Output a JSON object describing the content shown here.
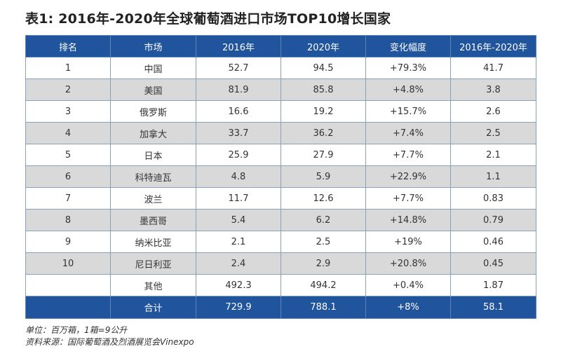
{
  "title": "表1: 2016年-2020年全球葡萄酒进口市场TOP10增长国家",
  "table": {
    "headers": [
      "排名",
      "市场",
      "2016年",
      "2020年",
      "变化幅度",
      "2016年-2020年"
    ],
    "rows": [
      [
        "1",
        "中国",
        "52.7",
        "94.5",
        "+79.3%",
        "41.7"
      ],
      [
        "2",
        "美国",
        "81.9",
        "85.8",
        "+4.8%",
        "3.8"
      ],
      [
        "3",
        "俄罗斯",
        "16.6",
        "19.2",
        "+15.7%",
        "2.6"
      ],
      [
        "4",
        "加拿大",
        "33.7",
        "36.2",
        "+7.4%",
        "2.5"
      ],
      [
        "5",
        "日本",
        "25.9",
        "27.9",
        "+7.7%",
        "2.1"
      ],
      [
        "6",
        "科特迪瓦",
        "4.8",
        "5.9",
        "+22.9%",
        "1.1"
      ],
      [
        "7",
        "波兰",
        "11.7",
        "12.6",
        "+7.7%",
        "0.83"
      ],
      [
        "8",
        "墨西哥",
        "5.4",
        "6.2",
        "+14.8%",
        "0.79"
      ],
      [
        "9",
        "纳米比亚",
        "2.1",
        "2.5",
        "+19%",
        "0.46"
      ],
      [
        "10",
        "尼日利亚",
        "2.4",
        "2.9",
        "+20.8%",
        "0.45"
      ],
      [
        "",
        "其他",
        "492.3",
        "494.2",
        "+0.4%",
        "1.87"
      ]
    ],
    "total": [
      "",
      "合计",
      "729.9",
      "788.1",
      "+8%",
      "58.1"
    ]
  },
  "notes": {
    "unit": "单位：百万箱，1箱=9公升",
    "source": "资料来源：国际葡萄酒及烈酒展览会Vinexpo"
  },
  "colors": {
    "header_bg": "#20549c",
    "stripe_bg": "#d9d9d9"
  }
}
